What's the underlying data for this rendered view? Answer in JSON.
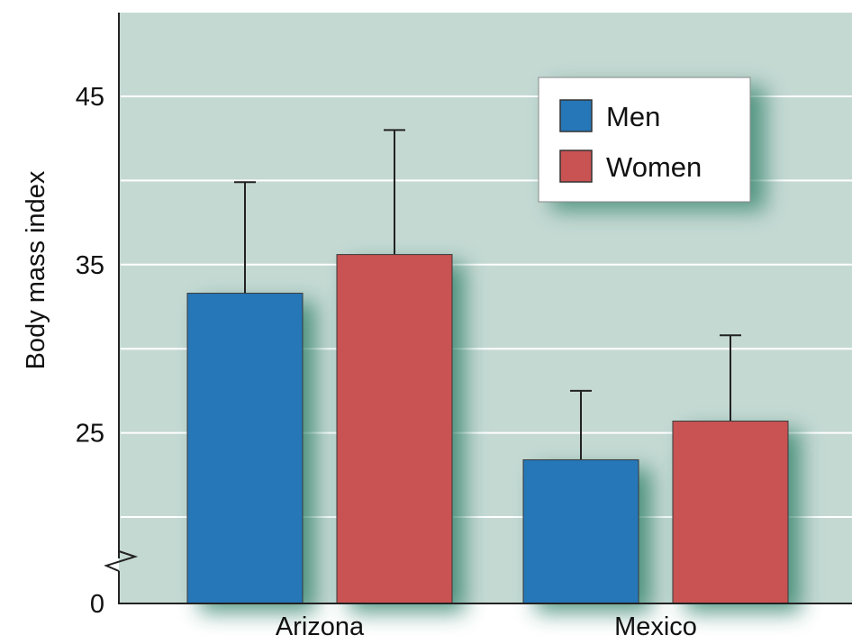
{
  "chart_data": {
    "type": "bar",
    "title": "",
    "xlabel": "",
    "ylabel": "Body mass index",
    "categories": [
      "Arizona",
      "Mexico"
    ],
    "series": [
      {
        "name": "Men",
        "values": [
          33.3,
          23.4
        ],
        "error_upper": [
          39.9,
          27.5
        ],
        "color": "#2577b8"
      },
      {
        "name": "Women",
        "values": [
          35.6,
          25.7
        ],
        "error_upper": [
          43.0,
          30.8
        ],
        "color": "#c85352"
      }
    ],
    "y_ticks": [
      0,
      25,
      35,
      45
    ],
    "ylim": [
      0,
      50
    ],
    "axis_break": true,
    "grid": true,
    "legend_position": "top-right",
    "colors": {
      "plot_background": "#c5d9d3",
      "gridline": "#ffffff",
      "bar_shadow": "#2e8068",
      "axis": "#222222"
    }
  }
}
